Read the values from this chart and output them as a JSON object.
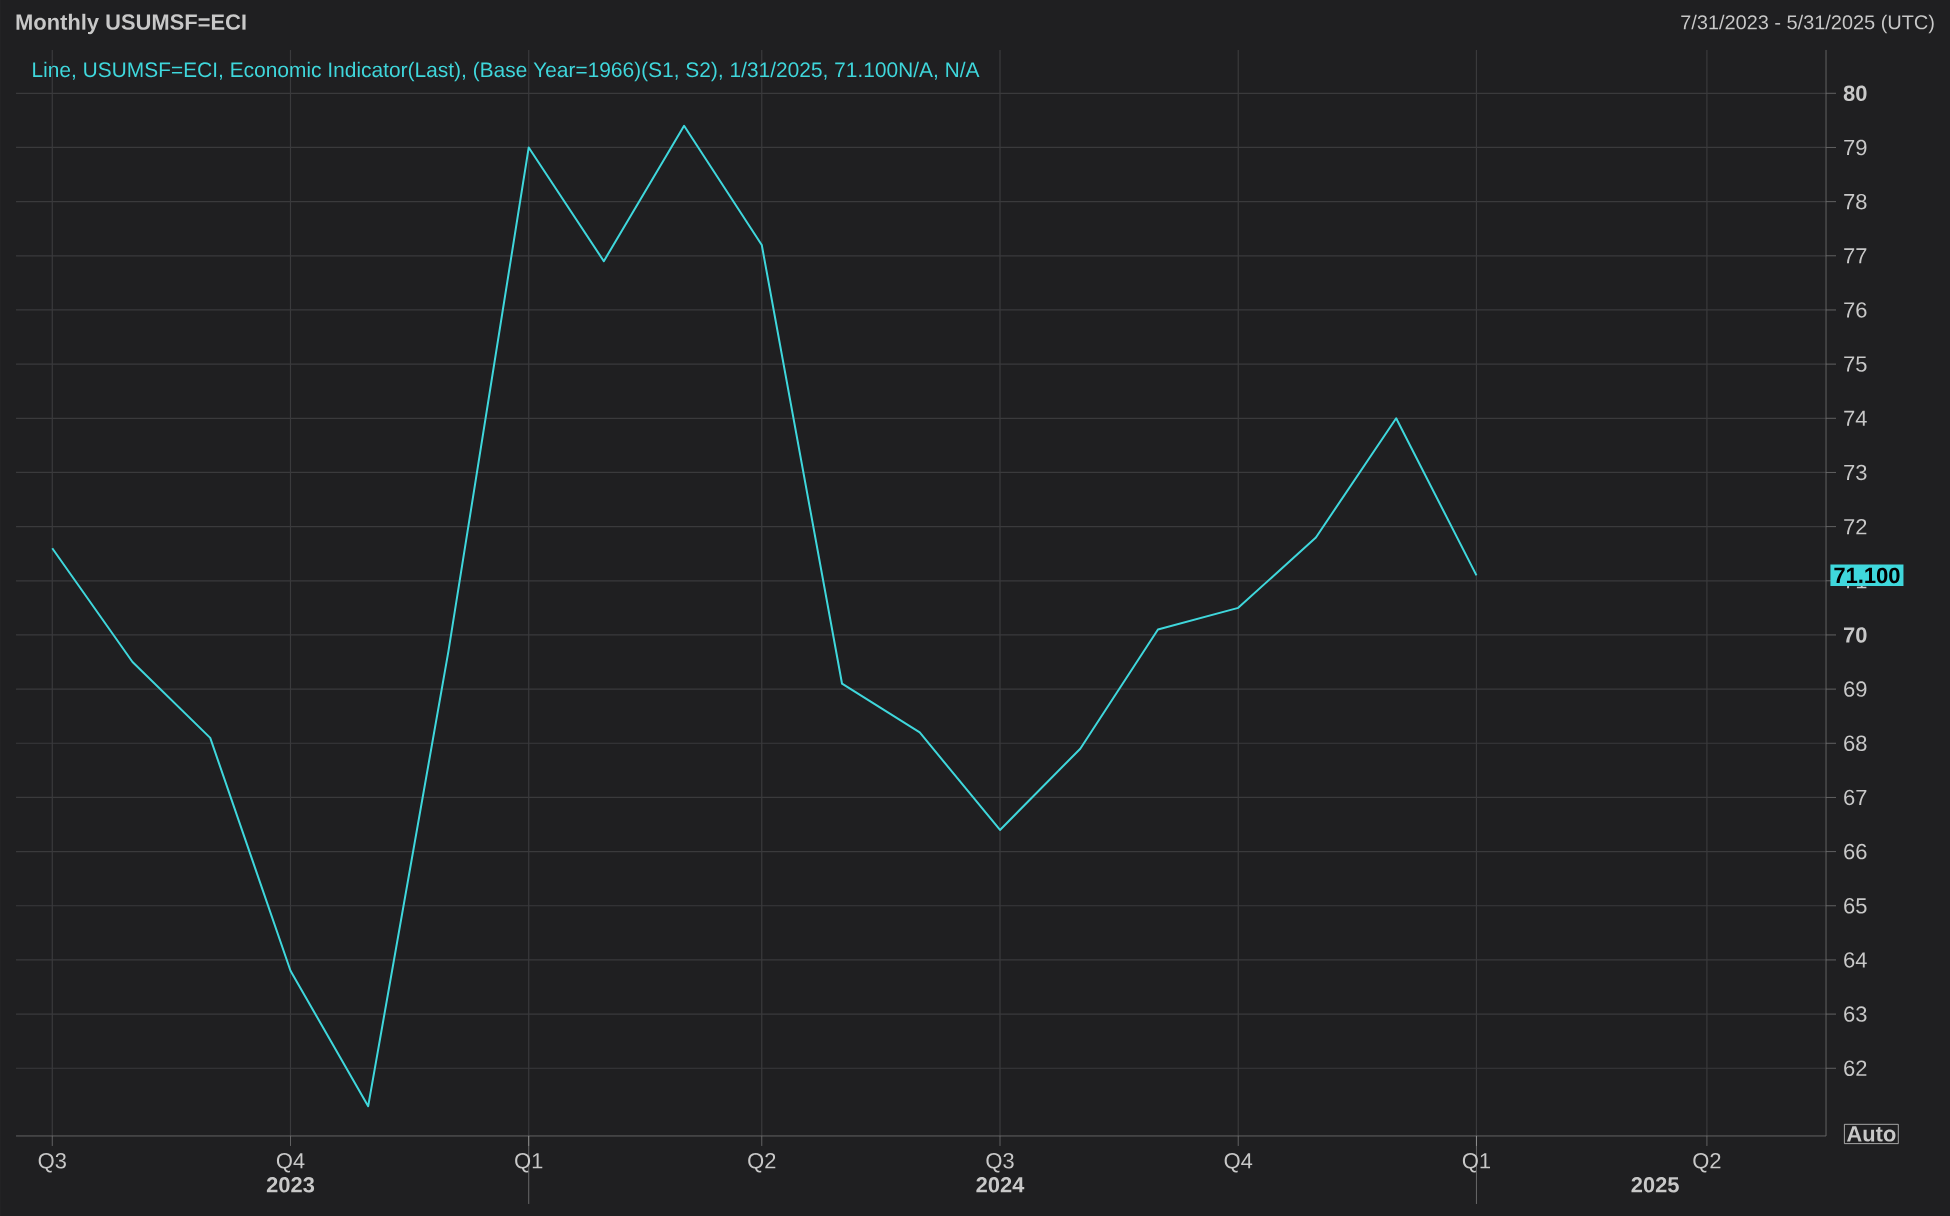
{
  "chart_data": {
    "type": "line",
    "title": "Monthly USUMSF=ECI",
    "subtitle": "7/31/2023 - 5/31/2025 (UTC)",
    "x": [
      "2023-07-31",
      "2023-08-31",
      "2023-09-30",
      "2023-10-31",
      "2023-11-30",
      "2023-12-31",
      "2024-01-31",
      "2024-02-29",
      "2024-03-31",
      "2024-04-30",
      "2024-05-31",
      "2024-06-30",
      "2024-07-31",
      "2024-08-31",
      "2024-09-30",
      "2024-10-31",
      "2024-11-30",
      "2024-12-31",
      "2025-01-31"
    ],
    "series": [
      {
        "name": "Line, USUMSF=ECI, Economic Indicator(Last), (Base Year=1966)(S1, S2),  1/31/2025, 71.100N/A, N/A",
        "color": "#3fd7dc",
        "values": [
          71.6,
          69.5,
          68.1,
          63.8,
          61.3,
          69.7,
          79.0,
          76.9,
          79.4,
          77.2,
          69.1,
          68.2,
          66.4,
          67.9,
          70.1,
          70.5,
          71.8,
          74.0,
          71.1
        ]
      }
    ],
    "xlim": [
      "2023-07-17",
      "2025-06-15"
    ],
    "xticks": [
      {
        "value": "2023-07-31",
        "label": "Q3"
      },
      {
        "value": "2023-10-31",
        "label": "Q4"
      },
      {
        "value": "2024-01-31",
        "label": "Q1"
      },
      {
        "value": "2024-04-30",
        "label": "Q2"
      },
      {
        "value": "2024-07-31",
        "label": "Q3"
      },
      {
        "value": "2024-10-31",
        "label": "Q4"
      },
      {
        "value": "2025-01-31",
        "label": "Q1"
      },
      {
        "value": "2025-04-30",
        "label": "Q2"
      }
    ],
    "x2lim": [
      "2023-07-17",
      "2025-06-15"
    ],
    "x2ticks": [
      {
        "value": "2023-10-31",
        "label": "2023"
      },
      {
        "value": "2024-01-31",
        "label": null
      },
      {
        "value": "2024-07-31",
        "label": "2024"
      },
      {
        "value": "2025-01-31",
        "label": null
      },
      {
        "value": "2025-04-10",
        "label": "2025"
      }
    ],
    "ylim": [
      60.75,
      80.8
    ],
    "yticks": [
      62,
      63,
      64,
      65,
      66,
      67,
      68,
      69,
      70,
      71,
      72,
      73,
      74,
      75,
      76,
      77,
      78,
      79,
      80
    ],
    "grid": true,
    "legend": "top left",
    "annotations": [
      "71.100",
      "Auto"
    ]
  }
}
